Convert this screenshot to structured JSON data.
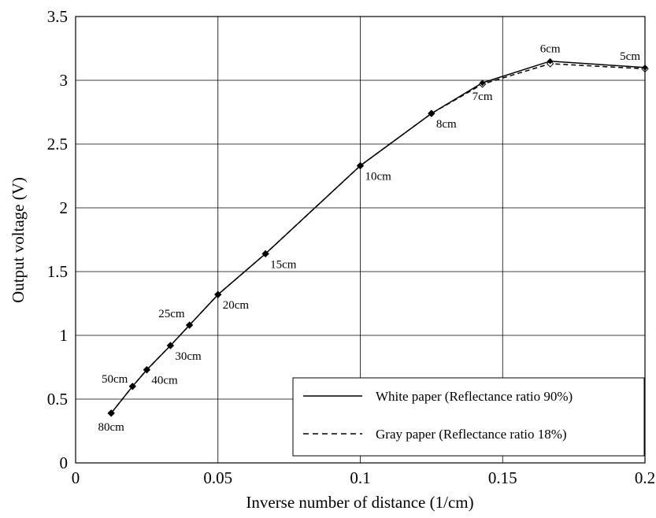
{
  "chart_data": {
    "type": "line",
    "title": "",
    "xlabel": "Inverse number of distance (1/cm)",
    "ylabel": "Output voltage (V)",
    "xlim": [
      0,
      0.2
    ],
    "ylim": [
      0,
      3.5
    ],
    "x_ticks": [
      0,
      0.05,
      0.1,
      0.15,
      0.2
    ],
    "x_tick_labels": [
      "0",
      "0.05",
      "0.1",
      "0.15",
      "0.2"
    ],
    "y_ticks": [
      0,
      0.5,
      1,
      1.5,
      2,
      2.5,
      3,
      3.5
    ],
    "y_tick_labels": [
      "0",
      "0.5",
      "1",
      "1.5",
      "2",
      "2.5",
      "3",
      "3.5"
    ],
    "grid": true,
    "legend_position": "bottom-right",
    "series": [
      {
        "name": "White paper (Reflectance ratio 90%)",
        "style": "solid",
        "marker": "filled-diamond",
        "color": "#000000",
        "x": [
          0.0125,
          0.02,
          0.025,
          0.0333,
          0.04,
          0.05,
          0.0667,
          0.1,
          0.125,
          0.1429,
          0.1667,
          0.2
        ],
        "y": [
          0.39,
          0.6,
          0.73,
          0.92,
          1.08,
          1.32,
          1.64,
          2.33,
          2.74,
          2.98,
          3.15,
          3.1
        ]
      },
      {
        "name": "Gray paper (Reflectance ratio 18%)",
        "style": "dashed",
        "marker": "open-diamond",
        "color": "#000000",
        "x": [
          0.0125,
          0.02,
          0.025,
          0.0333,
          0.04,
          0.05,
          0.0667,
          0.1,
          0.125,
          0.1429,
          0.1667,
          0.2
        ],
        "y": [
          0.39,
          0.6,
          0.73,
          0.92,
          1.08,
          1.32,
          1.64,
          2.33,
          2.74,
          2.97,
          3.13,
          3.09
        ]
      }
    ],
    "annotations": [
      {
        "text": "80cm",
        "x": 0.0125,
        "y": 0.39,
        "pos": "below"
      },
      {
        "text": "50cm",
        "x": 0.02,
        "y": 0.6,
        "pos": "left"
      },
      {
        "text": "40cm",
        "x": 0.025,
        "y": 0.73,
        "pos": "below-right"
      },
      {
        "text": "30cm",
        "x": 0.0333,
        "y": 0.92,
        "pos": "below-right"
      },
      {
        "text": "25cm",
        "x": 0.04,
        "y": 1.08,
        "pos": "above-left"
      },
      {
        "text": "20cm",
        "x": 0.05,
        "y": 1.32,
        "pos": "below-right"
      },
      {
        "text": "15cm",
        "x": 0.0667,
        "y": 1.64,
        "pos": "below-right"
      },
      {
        "text": "10cm",
        "x": 0.1,
        "y": 2.33,
        "pos": "below-right"
      },
      {
        "text": "8cm",
        "x": 0.125,
        "y": 2.74,
        "pos": "below-right"
      },
      {
        "text": "7cm",
        "x": 0.1429,
        "y": 2.98,
        "pos": "below"
      },
      {
        "text": "6cm",
        "x": 0.1667,
        "y": 3.15,
        "pos": "above"
      },
      {
        "text": "5cm",
        "x": 0.2,
        "y": 3.1,
        "pos": "above-left"
      }
    ]
  }
}
